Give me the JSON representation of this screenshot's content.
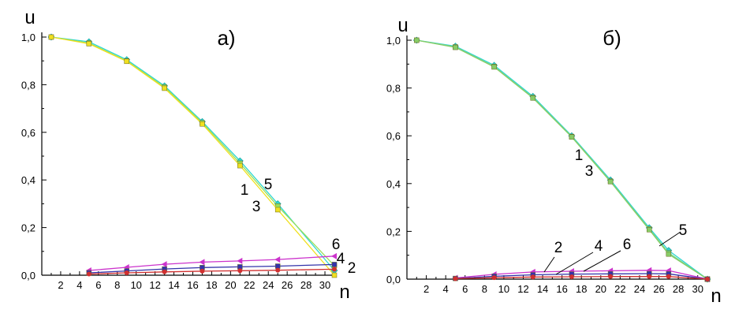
{
  "chart_data": [
    {
      "type": "line",
      "title": "а)",
      "xlabel": "n",
      "ylabel": "u",
      "xlim": [
        0,
        31
      ],
      "ylim": [
        0,
        1.0
      ],
      "xticks": [
        2,
        4,
        6,
        8,
        10,
        12,
        14,
        16,
        18,
        20,
        22,
        24,
        26,
        28,
        30
      ],
      "xtick_labels": [
        "2",
        "4",
        "6",
        "8",
        "10",
        "12",
        "14",
        "16",
        "18",
        "20",
        "22",
        "24",
        "26",
        "28",
        "30"
      ],
      "yticks": [
        0,
        0.2,
        0.4,
        0.6,
        0.8,
        1.0
      ],
      "ytick_labels": [
        "0,0",
        "0,2",
        "0,4",
        "0,6",
        "0,8",
        "1,0"
      ],
      "series": [
        {
          "name": "5",
          "color": "#2fd6d0",
          "marker": "diamond",
          "x": [
            1,
            5,
            9,
            13,
            17,
            21,
            25,
            31
          ],
          "y": [
            1.0,
            0.98,
            0.905,
            0.795,
            0.645,
            0.48,
            0.3,
            0.02
          ]
        },
        {
          "name": "1",
          "color": "#9be05a",
          "marker": "square",
          "x": [
            1,
            5,
            9,
            13,
            17,
            21,
            25,
            31
          ],
          "y": [
            1.0,
            0.975,
            0.9,
            0.79,
            0.64,
            0.47,
            0.29,
            0.04
          ]
        },
        {
          "name": "3",
          "color": "#f0e020",
          "marker": "square",
          "x": [
            1,
            5,
            9,
            13,
            17,
            21,
            25,
            31
          ],
          "y": [
            1.0,
            0.972,
            0.898,
            0.785,
            0.635,
            0.46,
            0.275,
            0.0
          ]
        },
        {
          "name": "6",
          "color": "#cc33cc",
          "marker": "triangle-left",
          "x": [
            5,
            9,
            13,
            17,
            21,
            25,
            31
          ],
          "y": [
            0.02,
            0.033,
            0.046,
            0.055,
            0.06,
            0.066,
            0.08
          ]
        },
        {
          "name": "4",
          "color": "#3333aa",
          "marker": "square",
          "x": [
            5,
            9,
            13,
            17,
            21,
            25,
            31
          ],
          "y": [
            0.01,
            0.018,
            0.026,
            0.032,
            0.035,
            0.038,
            0.045
          ]
        },
        {
          "name": "2",
          "color": "#d03030",
          "marker": "circle",
          "x": [
            5,
            9,
            13,
            17,
            21,
            25,
            31
          ],
          "y": [
            0.005,
            0.01,
            0.014,
            0.017,
            0.019,
            0.021,
            0.025
          ]
        }
      ],
      "annotations": [
        "1",
        "5",
        "3",
        "6",
        "4",
        "2"
      ]
    },
    {
      "type": "line",
      "title": "б)",
      "xlabel": "n",
      "ylabel": "u",
      "xlim": [
        0,
        31
      ],
      "ylim": [
        0,
        1.0
      ],
      "xticks": [
        2,
        4,
        6,
        8,
        10,
        12,
        14,
        16,
        18,
        20,
        22,
        24,
        26,
        28,
        30
      ],
      "xtick_labels": [
        "2",
        "4",
        "6",
        "8",
        "10",
        "12",
        "14",
        "16",
        "18",
        "20",
        "22",
        "24",
        "26",
        "28",
        "30"
      ],
      "yticks": [
        0,
        0.2,
        0.4,
        0.6,
        0.8,
        1.0
      ],
      "ytick_labels": [
        "0,0",
        "0,2",
        "0,4",
        "0,6",
        "0,8",
        "1,0"
      ],
      "series": [
        {
          "name": "5",
          "color": "#2fd6d0",
          "marker": "diamond",
          "x": [
            1,
            5,
            9,
            13,
            17,
            21,
            25,
            27,
            31
          ],
          "y": [
            1.0,
            0.975,
            0.895,
            0.765,
            0.6,
            0.415,
            0.215,
            0.12,
            0.0
          ]
        },
        {
          "name": "1",
          "color": "#6fd890",
          "marker": "square",
          "x": [
            1,
            5,
            9,
            13,
            17,
            21,
            25,
            27,
            31
          ],
          "y": [
            1.0,
            0.972,
            0.89,
            0.76,
            0.597,
            0.41,
            0.21,
            0.11,
            0.0
          ]
        },
        {
          "name": "3",
          "color": "#88cc66",
          "marker": "square",
          "x": [
            1,
            5,
            9,
            13,
            17,
            21,
            25,
            27,
            31
          ],
          "y": [
            1.0,
            0.97,
            0.888,
            0.758,
            0.595,
            0.408,
            0.207,
            0.105,
            0.0
          ]
        },
        {
          "name": "6",
          "color": "#cc33cc",
          "marker": "triangle-left",
          "x": [
            5,
            9,
            13,
            17,
            21,
            25,
            27,
            31
          ],
          "y": [
            0.005,
            0.02,
            0.03,
            0.033,
            0.035,
            0.037,
            0.036,
            0.0
          ]
        },
        {
          "name": "4",
          "color": "#3333aa",
          "marker": "square",
          "x": [
            5,
            9,
            13,
            17,
            21,
            25,
            27,
            31
          ],
          "y": [
            0.003,
            0.012,
            0.018,
            0.021,
            0.022,
            0.023,
            0.022,
            0.0
          ]
        },
        {
          "name": "2",
          "color": "#d03030",
          "marker": "circle",
          "x": [
            5,
            9,
            13,
            17,
            21,
            25,
            27,
            31
          ],
          "y": [
            0.002,
            0.006,
            0.009,
            0.01,
            0.011,
            0.011,
            0.011,
            0.0
          ]
        }
      ],
      "annotations": [
        "1",
        "3",
        "5",
        "2",
        "4",
        "6"
      ]
    }
  ]
}
